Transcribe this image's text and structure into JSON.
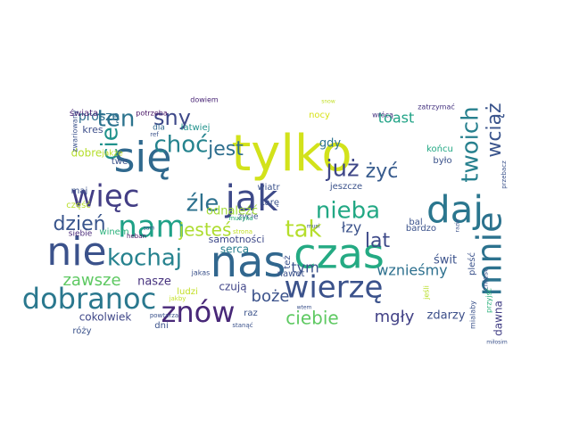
{
  "words": [
    {
      "text": "tylko",
      "color": "#d2e21b"
    },
    {
      "text": "się",
      "color": "#30698e"
    },
    {
      "text": "daj",
      "color": "#2a768e"
    },
    {
      "text": "nas",
      "color": "#31678e"
    },
    {
      "text": "czas",
      "color": "#24aa83"
    },
    {
      "text": "wierzę",
      "color": "#3b528b"
    },
    {
      "text": "nie",
      "color": "#3b528b"
    },
    {
      "text": "jak",
      "color": "#3e4a89"
    },
    {
      "text": "więc",
      "color": "#433e85"
    },
    {
      "text": "mnie",
      "color": "#2c728e"
    },
    {
      "text": "dobranoc",
      "color": "#2a788e"
    },
    {
      "text": "nam",
      "color": "#1fa187"
    },
    {
      "text": "znów",
      "color": "#482878"
    },
    {
      "text": "kochaj",
      "color": "#26828e"
    },
    {
      "text": "tak",
      "color": "#b5de2b"
    },
    {
      "text": "nieba",
      "color": "#22a884"
    },
    {
      "text": "już",
      "color": "#3f4788"
    },
    {
      "text": "twoich",
      "color": "#27808e"
    },
    {
      "text": "choć",
      "color": "#25838e"
    },
    {
      "text": "jest",
      "color": "#2e6e8e"
    },
    {
      "text": "sny",
      "color": "#3e4989"
    },
    {
      "text": "ten",
      "color": "#2c738e"
    },
    {
      "text": "cie",
      "color": "#20928c"
    },
    {
      "text": "źle",
      "color": "#2d718e"
    },
    {
      "text": "dzień",
      "color": "#39558c"
    },
    {
      "text": "jesteś",
      "color": "#addc30"
    },
    {
      "text": "lat",
      "color": "#3e4a89"
    },
    {
      "text": "żyć",
      "color": "#375b8d"
    },
    {
      "text": "wciąż",
      "color": "#3a548c"
    },
    {
      "text": "zawsze",
      "color": "#5ec962"
    },
    {
      "text": "boże",
      "color": "#3b528b"
    },
    {
      "text": "ciebie",
      "color": "#5ec962"
    },
    {
      "text": "mgły",
      "color": "#424186"
    },
    {
      "text": "toast",
      "color": "#20a386"
    },
    {
      "text": "łzy",
      "color": "#3b528b"
    },
    {
      "text": "gdy",
      "color": "#2c728e"
    },
    {
      "text": "tym",
      "color": "#3b528b"
    },
    {
      "text": "wznieśmy",
      "color": "#2d708e"
    },
    {
      "text": "nasze",
      "color": "#46327e"
    },
    {
      "text": "odnaleźć",
      "color": "#a2da37"
    },
    {
      "text": "serca",
      "color": "#277f8e"
    },
    {
      "text": "samotności",
      "color": "#3e4989"
    },
    {
      "text": "czują",
      "color": "#404588"
    },
    {
      "text": "zdarzy",
      "color": "#3c4f8a"
    },
    {
      "text": "dawna",
      "color": "#423f85"
    },
    {
      "text": "świt",
      "color": "#3b528b"
    },
    {
      "text": "cokolwiek",
      "color": "#3f4788"
    },
    {
      "text": "proszę",
      "color": "#2e6e8e"
    },
    {
      "text": "kres",
      "color": "#3d4e8a"
    },
    {
      "text": "dobre",
      "color": "#b5de2b"
    },
    {
      "text": "twe",
      "color": "#3b528b"
    },
    {
      "text": "jakże",
      "color": "#c2df23"
    },
    {
      "text": "świata",
      "color": "#482475"
    },
    {
      "text": "dla",
      "color": "#31688e"
    },
    {
      "text": "łatwiej",
      "color": "#20928c"
    },
    {
      "text": "potrzeba",
      "color": "#471365"
    },
    {
      "text": "dowiem",
      "color": "#482475"
    },
    {
      "text": "nocy",
      "color": "#d8e219"
    },
    {
      "text": "wrócą",
      "color": "#463480"
    },
    {
      "text": "zwariowany",
      "color": "#3b528b"
    },
    {
      "text": "maj",
      "color": "#3b528b"
    },
    {
      "text": "część",
      "color": "#b8de29"
    },
    {
      "text": "siebie",
      "color": "#482878"
    },
    {
      "text": "winem",
      "color": "#2db27d"
    },
    {
      "text": "heban",
      "color": "#471365"
    },
    {
      "text": "wiatr",
      "color": "#3b528b"
    },
    {
      "text": "karę",
      "color": "#3b528b"
    },
    {
      "text": "życie",
      "color": "#3b528b"
    },
    {
      "text": "jeszcze",
      "color": "#3b528b"
    },
    {
      "text": "końcu",
      "color": "#22a884"
    },
    {
      "text": "było",
      "color": "#3b528b"
    },
    {
      "text": "zatrzymać",
      "color": "#463480"
    },
    {
      "text": "bal",
      "color": "#3b528b"
    },
    {
      "text": "bardzo",
      "color": "#3b528b"
    },
    {
      "text": "też",
      "color": "#3b528b"
    },
    {
      "text": "nawet",
      "color": "#3b528b"
    },
    {
      "text": "jeśli",
      "color": "#b8de29"
    },
    {
      "text": "pleść",
      "color": "#3b528b"
    },
    {
      "text": "mialaby",
      "color": "#3b528b"
    },
    {
      "text": "zniesc",
      "color": "#3b528b"
    },
    {
      "text": "przyjść",
      "color": "#2db27d"
    },
    {
      "text": "jakas",
      "color": "#3b528b"
    },
    {
      "text": "ludzi",
      "color": "#c2df23"
    },
    {
      "text": "jakby",
      "color": "#c2df23"
    },
    {
      "text": "raz",
      "color": "#3b528b"
    },
    {
      "text": "stanąć",
      "color": "#3b528b"
    },
    {
      "text": "róży",
      "color": "#3b528b"
    },
    {
      "text": "dni",
      "color": "#3b528b"
    },
    {
      "text": "powtarza",
      "color": "#3b528b"
    },
    {
      "text": "miłosim",
      "color": "#3b528b"
    },
    {
      "text": "muzyka",
      "color": "#2db27d"
    },
    {
      "text": "strona",
      "color": "#c2df23"
    },
    {
      "text": "sam",
      "color": "#3b528b"
    },
    {
      "text": "musi",
      "color": "#3b528b"
    },
    {
      "text": "snow",
      "color": "#c2df23"
    },
    {
      "text": "wtem",
      "color": "#3b528b"
    },
    {
      "text": "przebacz",
      "color": "#3b528b"
    },
    {
      "text": "razie",
      "color": "#3b528b"
    },
    {
      "text": "ref",
      "color": "#3b528b"
    }
  ]
}
